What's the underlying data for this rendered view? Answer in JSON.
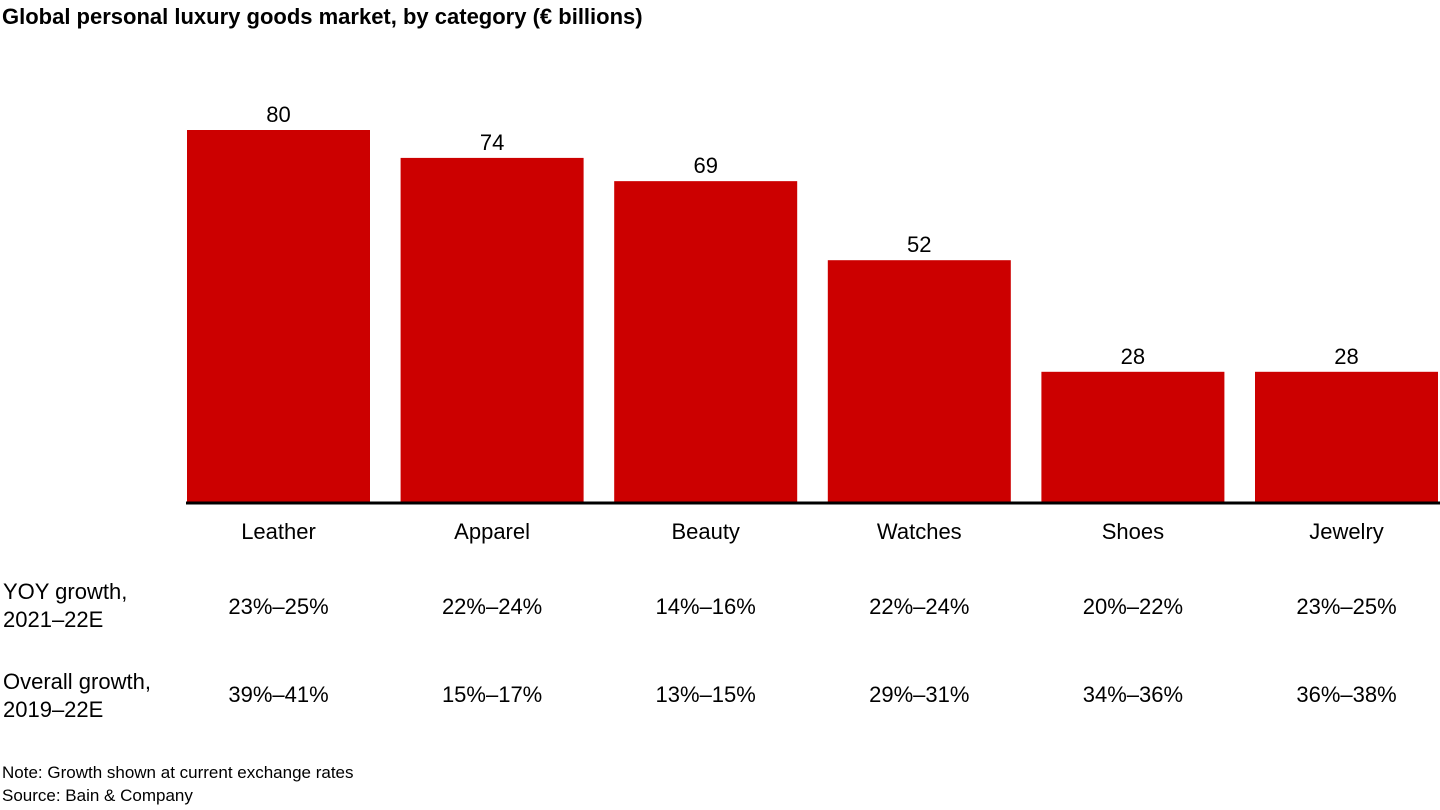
{
  "chart_data": {
    "type": "bar",
    "title": "Global personal luxury goods market, by category (€ billions)",
    "categories": [
      "Leather",
      "Apparel",
      "Beauty",
      "Watches",
      "Shoes",
      "Jewelry"
    ],
    "values": [
      80,
      74,
      69,
      52,
      28,
      28
    ],
    "ylim": [
      0,
      80
    ],
    "grid": false,
    "legend": "none",
    "bar_color": "#CC0000",
    "table_rows": [
      {
        "label_lines": [
          "YOY growth,",
          "2021–22E"
        ],
        "values": [
          "23%–25%",
          "22%–24%",
          "14%–16%",
          "22%–24%",
          "20%–22%",
          "23%–25%"
        ]
      },
      {
        "label_lines": [
          "Overall growth,",
          "2019–22E"
        ],
        "values": [
          "39%–41%",
          "15%–17%",
          "13%–15%",
          "29%–31%",
          "34%–36%",
          "36%–38%"
        ]
      }
    ]
  },
  "notes": {
    "note": "Note: Growth shown at current exchange rates",
    "source": "Source: Bain & Company"
  }
}
